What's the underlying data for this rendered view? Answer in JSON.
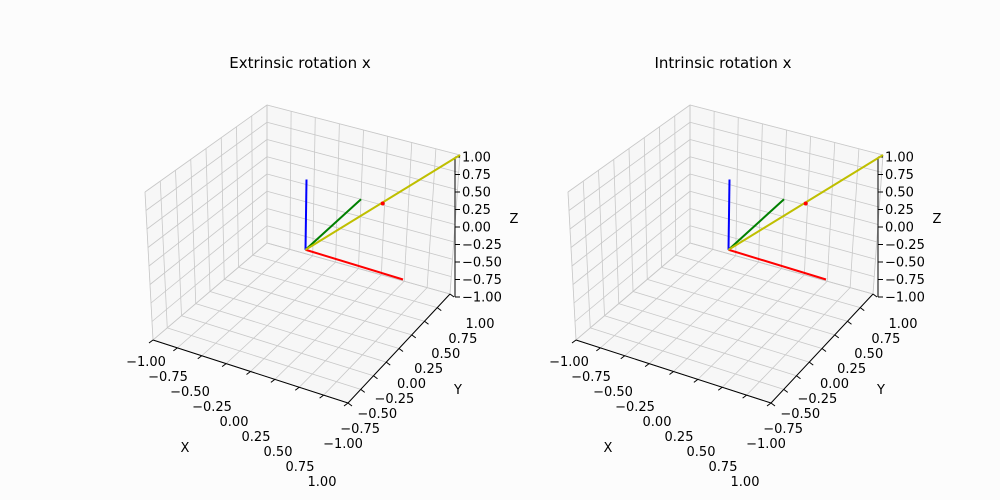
{
  "chart_data": [
    {
      "type": "line3d",
      "title": "Extrinsic rotation x",
      "xlabel": "X",
      "ylabel": "Y",
      "zlabel": "Z",
      "xlim": [
        -1,
        1
      ],
      "ylim": [
        -1,
        1
      ],
      "zlim": [
        -1,
        1
      ],
      "ticks": [
        -1.0,
        -0.75,
        -0.5,
        -0.25,
        0.0,
        0.25,
        0.5,
        0.75,
        1.0
      ],
      "tick_labels": [
        "−1.00",
        "−0.75",
        "−0.50",
        "−0.25",
        "0.00",
        "0.25",
        "0.50",
        "0.75",
        "1.00"
      ],
      "grid": true,
      "lines": [
        {
          "color": "#ff0000",
          "from": [
            0,
            0,
            0
          ],
          "to": [
            1,
            0,
            0
          ]
        },
        {
          "color": "#008000",
          "from": [
            0,
            0,
            0
          ],
          "to": [
            0,
            1,
            0
          ]
        },
        {
          "color": "#0000ff",
          "from": [
            0,
            0,
            0
          ],
          "to": [
            0,
            0,
            1
          ]
        },
        {
          "color": "#bfbf00",
          "from": [
            0,
            0,
            0
          ],
          "to": [
            1,
            1,
            1
          ]
        }
      ],
      "points": [
        {
          "color": "#ff0000",
          "at": [
            0.5,
            0.5,
            0.5
          ]
        }
      ]
    },
    {
      "type": "line3d",
      "title": "Intrinsic rotation x",
      "xlabel": "X",
      "ylabel": "Y",
      "zlabel": "Z",
      "xlim": [
        -1,
        1
      ],
      "ylim": [
        -1,
        1
      ],
      "zlim": [
        -1,
        1
      ],
      "ticks": [
        -1.0,
        -0.75,
        -0.5,
        -0.25,
        0.0,
        0.25,
        0.5,
        0.75,
        1.0
      ],
      "tick_labels": [
        "−1.00",
        "−0.75",
        "−0.50",
        "−0.25",
        "0.00",
        "0.25",
        "0.50",
        "0.75",
        "1.00"
      ],
      "grid": true,
      "lines": [
        {
          "color": "#ff0000",
          "from": [
            0,
            0,
            0
          ],
          "to": [
            1,
            0,
            0
          ]
        },
        {
          "color": "#008000",
          "from": [
            0,
            0,
            0
          ],
          "to": [
            0,
            1,
            0
          ]
        },
        {
          "color": "#0000ff",
          "from": [
            0,
            0,
            0
          ],
          "to": [
            0,
            0,
            1
          ]
        },
        {
          "color": "#bfbf00",
          "from": [
            0,
            0,
            0
          ],
          "to": [
            1,
            1,
            1
          ]
        }
      ],
      "points": [
        {
          "color": "#ff0000",
          "at": [
            0.5,
            0.5,
            0.5
          ]
        }
      ]
    }
  ]
}
